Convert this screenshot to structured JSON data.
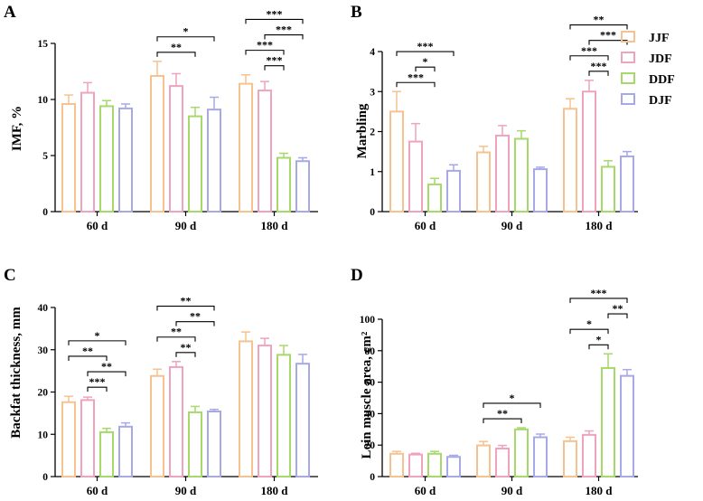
{
  "legend": [
    {
      "name": "JJF",
      "color": "#F6C28F"
    },
    {
      "name": "JDF",
      "color": "#EFA3BE"
    },
    {
      "name": "DDF",
      "color": "#A6D96A"
    },
    {
      "name": "DJF",
      "color": "#A7A9E6"
    }
  ],
  "chart_data": [
    {
      "panel": "A",
      "type": "bar",
      "ylabel": "IMF, %",
      "ylim": [
        0,
        15
      ],
      "yticks": [
        0,
        5,
        10,
        15
      ],
      "categories": [
        "60 d",
        "90 d",
        "180 d"
      ],
      "series": [
        {
          "name": "JJF",
          "values": [
            9.6,
            12.1,
            11.4
          ],
          "errors": [
            0.8,
            1.3,
            0.8
          ]
        },
        {
          "name": "JDF",
          "values": [
            10.6,
            11.2,
            10.8
          ],
          "errors": [
            0.9,
            1.1,
            0.8
          ]
        },
        {
          "name": "DDF",
          "values": [
            9.4,
            8.5,
            4.8
          ],
          "errors": [
            0.5,
            0.8,
            0.4
          ]
        },
        {
          "name": "DJF",
          "values": [
            9.2,
            9.1,
            4.5
          ],
          "errors": [
            0.4,
            1.1,
            0.3
          ]
        }
      ],
      "significance": [
        {
          "category": "90 d",
          "from": "JJF",
          "to": "DJF",
          "level": 2,
          "label": "*"
        },
        {
          "category": "90 d",
          "from": "JJF",
          "to": "DDF",
          "level": 1,
          "label": "**"
        },
        {
          "category": "180 d",
          "from": "JJF",
          "to": "DJF",
          "level": 4,
          "label": "***"
        },
        {
          "category": "180 d",
          "from": "JDF",
          "to": "DJF",
          "level": 3,
          "label": "***"
        },
        {
          "category": "180 d",
          "from": "JJF",
          "to": "DDF",
          "level": 2,
          "label": "***"
        },
        {
          "category": "180 d",
          "from": "JDF",
          "to": "DDF",
          "level": 1,
          "label": "***"
        }
      ]
    },
    {
      "panel": "B",
      "type": "bar",
      "ylabel": "Marbling",
      "ylim": [
        0,
        4
      ],
      "yticks": [
        0,
        1,
        2,
        3,
        4
      ],
      "categories": [
        "60 d",
        "90 d",
        "180 d"
      ],
      "series": [
        {
          "name": "JJF",
          "values": [
            2.5,
            1.48,
            2.57
          ],
          "errors": [
            0.5,
            0.15,
            0.25
          ]
        },
        {
          "name": "JDF",
          "values": [
            1.75,
            1.9,
            3.0
          ],
          "errors": [
            0.45,
            0.25,
            0.28
          ]
        },
        {
          "name": "DDF",
          "values": [
            0.68,
            1.82,
            1.12
          ],
          "errors": [
            0.15,
            0.2,
            0.15
          ]
        },
        {
          "name": "DJF",
          "values": [
            1.02,
            1.06,
            1.38
          ],
          "errors": [
            0.15,
            0.05,
            0.12
          ]
        }
      ],
      "significance": [
        {
          "category": "60 d",
          "from": "JJF",
          "to": "DJF",
          "level": 3,
          "label": "***"
        },
        {
          "category": "60 d",
          "from": "JDF",
          "to": "DDF",
          "level": 2,
          "label": "*"
        },
        {
          "category": "60 d",
          "from": "JJF",
          "to": "DDF",
          "level": 1,
          "label": "***"
        },
        {
          "category": "180 d",
          "from": "JJF",
          "to": "DJF",
          "level": 4,
          "label": "**"
        },
        {
          "category": "180 d",
          "from": "JDF",
          "to": "DJF",
          "level": 3,
          "label": "***"
        },
        {
          "category": "180 d",
          "from": "JJF",
          "to": "DDF",
          "level": 2,
          "label": "***"
        },
        {
          "category": "180 d",
          "from": "JDF",
          "to": "DDF",
          "level": 1,
          "label": "***"
        }
      ]
    },
    {
      "panel": "C",
      "type": "bar",
      "ylabel": "Backfat thickness, mm",
      "ylim": [
        0,
        40
      ],
      "yticks": [
        0,
        10,
        20,
        30,
        40
      ],
      "categories": [
        "60 d",
        "90 d",
        "180 d"
      ],
      "series": [
        {
          "name": "JJF",
          "values": [
            17.6,
            23.8,
            32.0
          ],
          "errors": [
            1.4,
            1.6,
            2.2
          ]
        },
        {
          "name": "JDF",
          "values": [
            18.1,
            25.9,
            31.0
          ],
          "errors": [
            0.7,
            1.3,
            1.7
          ]
        },
        {
          "name": "DDF",
          "values": [
            10.5,
            15.2,
            28.8
          ],
          "errors": [
            0.9,
            1.4,
            2.2
          ]
        },
        {
          "name": "DJF",
          "values": [
            11.8,
            15.4,
            26.7
          ],
          "errors": [
            0.9,
            0.5,
            2.2
          ]
        }
      ],
      "significance": [
        {
          "category": "60 d",
          "from": "JJF",
          "to": "DJF",
          "level": 4,
          "label": "*"
        },
        {
          "category": "60 d",
          "from": "JJF",
          "to": "DDF",
          "level": 3,
          "label": "**"
        },
        {
          "category": "60 d",
          "from": "JDF",
          "to": "DJF",
          "level": 2,
          "label": "**"
        },
        {
          "category": "60 d",
          "from": "JDF",
          "to": "DDF",
          "level": 1,
          "label": "***"
        },
        {
          "category": "90 d",
          "from": "JJF",
          "to": "DJF",
          "level": 4,
          "label": "**"
        },
        {
          "category": "90 d",
          "from": "JDF",
          "to": "DJF",
          "level": 3,
          "label": "**"
        },
        {
          "category": "90 d",
          "from": "JJF",
          "to": "DDF",
          "level": 2,
          "label": "**"
        },
        {
          "category": "90 d",
          "from": "JDF",
          "to": "DDF",
          "level": 1,
          "label": "**"
        }
      ]
    },
    {
      "panel": "D",
      "type": "bar",
      "ylabel": "Loin muscle area, cm²",
      "ylim": [
        0,
        100
      ],
      "yticks": [
        0,
        20,
        40,
        60,
        80,
        100
      ],
      "categories": [
        "60 d",
        "90 d",
        "180 d"
      ],
      "series": [
        {
          "name": "JJF",
          "values": [
            14.5,
            19.8,
            22.5
          ],
          "errors": [
            1.5,
            2.5,
            2.5
          ]
        },
        {
          "name": "JDF",
          "values": [
            14.0,
            17.8,
            26.5
          ],
          "errors": [
            0.8,
            2.0,
            2.5
          ]
        },
        {
          "name": "DDF",
          "values": [
            14.5,
            30.0,
            69.0
          ],
          "errors": [
            1.5,
            1.0,
            9.0
          ]
        },
        {
          "name": "DJF",
          "values": [
            12.5,
            25.0,
            64.0
          ],
          "errors": [
            1.0,
            2.0,
            4.0
          ]
        }
      ],
      "significance": [
        {
          "category": "90 d",
          "from": "JJF",
          "to": "DJF",
          "level": 2,
          "label": "*"
        },
        {
          "category": "90 d",
          "from": "JJF",
          "to": "DDF",
          "level": 1,
          "label": "**"
        },
        {
          "category": "180 d",
          "from": "JJF",
          "to": "DJF",
          "level": 4,
          "label": "***"
        },
        {
          "category": "180 d",
          "from": "DDF",
          "to": "DJF",
          "level": 3,
          "label": "**"
        },
        {
          "category": "180 d",
          "from": "JJF",
          "to": "DDF",
          "level": 2,
          "label": "*"
        },
        {
          "category": "180 d",
          "from": "JDF",
          "to": "DDF",
          "level": 1,
          "label": "*"
        }
      ]
    }
  ]
}
